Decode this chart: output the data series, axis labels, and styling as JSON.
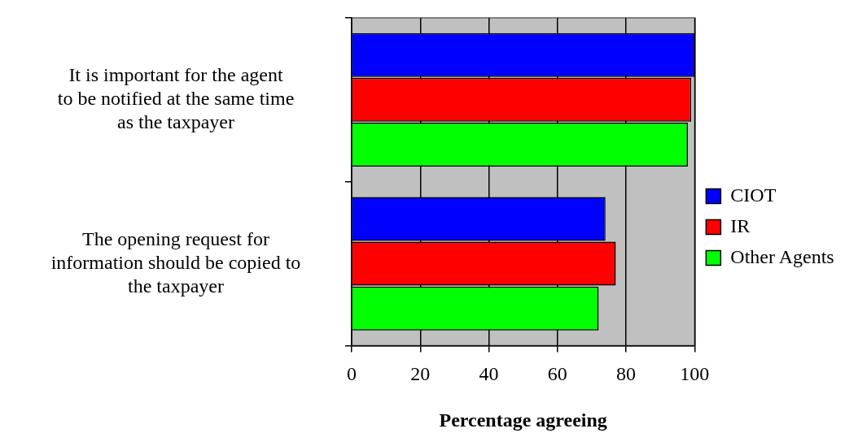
{
  "chart_data": {
    "type": "bar",
    "orientation": "horizontal",
    "xlabel": "Percentage agreeing",
    "categories": [
      "It is important for the agent to be notified at the same time as the taxpayer",
      "The opening request for information should be copied to the taxpayer"
    ],
    "series": [
      {
        "name": "CIOT",
        "color": "#0000ff",
        "values": [
          100,
          74
        ]
      },
      {
        "name": "IR",
        "color": "#ff0000",
        "values": [
          99,
          77
        ]
      },
      {
        "name": "Other Agents",
        "color": "#00ff00",
        "values": [
          98,
          72
        ]
      }
    ],
    "xlim": [
      0,
      100
    ],
    "xticks": [
      0,
      20,
      40,
      60,
      80,
      100
    ],
    "grid": "x",
    "legend": "right"
  }
}
